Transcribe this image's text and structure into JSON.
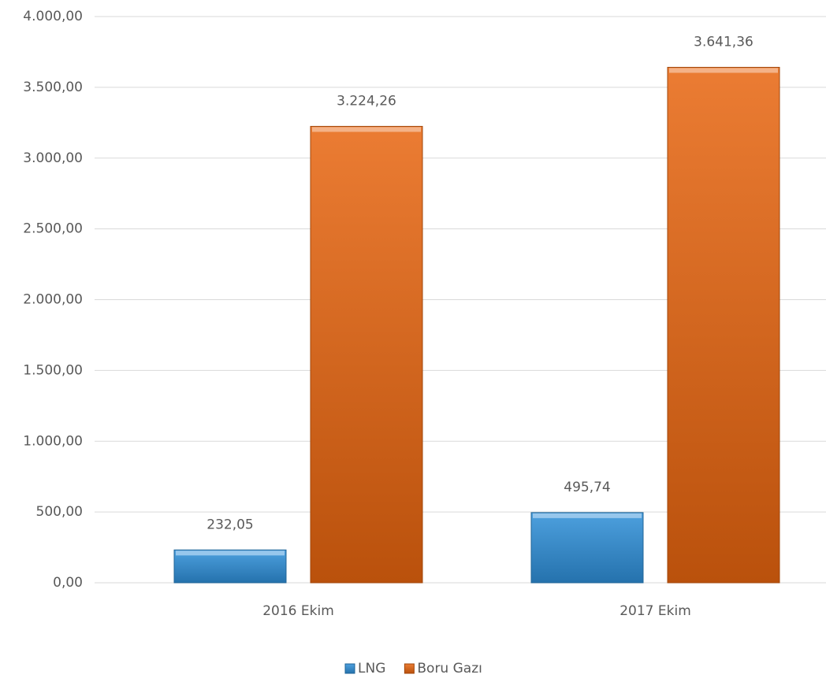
{
  "chart_data": {
    "type": "bar",
    "categories": [
      "2016 Ekim",
      "2017 Ekim"
    ],
    "series": [
      {
        "name": "LNG",
        "color": "#2e8fd8",
        "values": [
          232.05,
          495.74
        ],
        "value_labels": [
          "232,05",
          "495,74"
        ]
      },
      {
        "name": "Boru Gazı",
        "color": "#e8650f",
        "values": [
          3224.26,
          3641.36
        ],
        "value_labels": [
          "3.224,26",
          "3.641,36"
        ]
      }
    ],
    "ylim": [
      0,
      4000
    ],
    "yticks": [
      {
        "value": 0,
        "label": "0,00"
      },
      {
        "value": 500,
        "label": "500,00"
      },
      {
        "value": 1000,
        "label": "1.000,00"
      },
      {
        "value": 1500,
        "label": "1.500,00"
      },
      {
        "value": 2000,
        "label": "2.000,00"
      },
      {
        "value": 2500,
        "label": "2.500,00"
      },
      {
        "value": 3000,
        "label": "3.000,00"
      },
      {
        "value": 3500,
        "label": "3.500,00"
      },
      {
        "value": 4000,
        "label": "4.000,00"
      }
    ],
    "grid": true,
    "legend": "bottom"
  }
}
